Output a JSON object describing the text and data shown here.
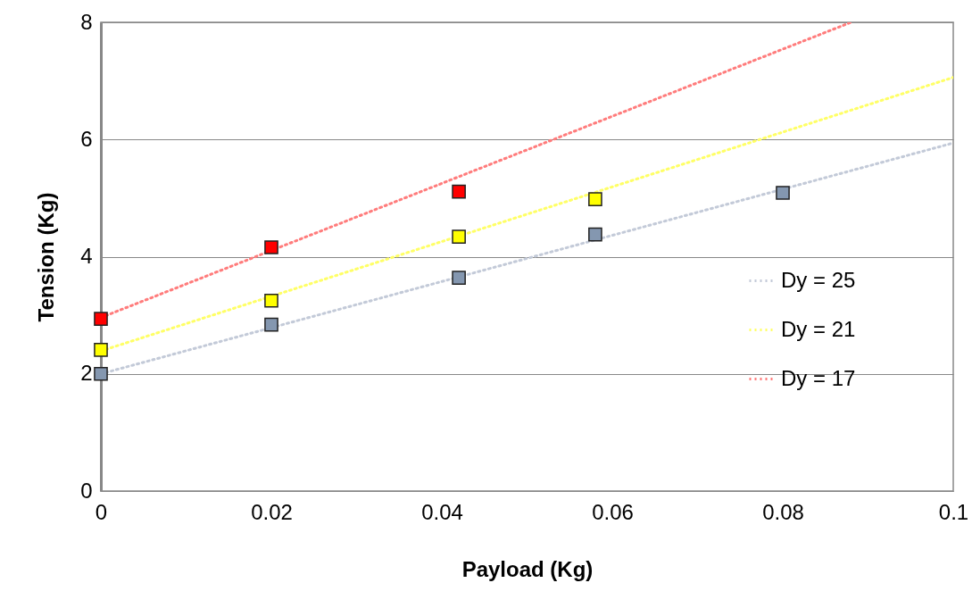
{
  "chart_data": {
    "type": "scatter",
    "xlabel": "Payload (Kg)",
    "ylabel": "Tension (Kg)",
    "xlim": [
      0,
      0.1
    ],
    "xticks": [
      0,
      0.02,
      0.04,
      0.06,
      0.08,
      0.1
    ],
    "ylim": [
      0,
      8
    ],
    "yticks": [
      0,
      2,
      4,
      6,
      8
    ],
    "grid": "y",
    "legend": "right",
    "marker": "square",
    "series": [
      {
        "color": "#8497b0",
        "x": [
          0,
          0.02,
          0.042,
          0.058,
          0.08
        ],
        "values": [
          2.0,
          2.84,
          3.64,
          4.38,
          5.09
        ]
      },
      {
        "color": "#ffff00",
        "x": [
          0,
          0.02,
          0.042,
          0.058
        ],
        "values": [
          2.41,
          3.25,
          4.34,
          4.98
        ]
      },
      {
        "color": "#ff0000",
        "x": [
          0,
          0.02,
          0.042
        ],
        "values": [
          2.94,
          4.16,
          5.11
        ]
      },
      {
        "name": "Dy = 25",
        "type": "line",
        "line_style": "dotted",
        "marker": "none",
        "color": "#c3cad8",
        "x": [
          0,
          0.1
        ],
        "values": [
          2.0,
          5.94
        ]
      },
      {
        "name": "Dy = 21",
        "type": "line",
        "line_style": "dotted",
        "marker": "none",
        "color": "#ffff66",
        "x": [
          0,
          0.1
        ],
        "values": [
          2.39,
          7.06
        ]
      },
      {
        "name": "Dy = 17",
        "type": "line",
        "line_style": "dotted",
        "marker": "none",
        "color": "#ff7c7c",
        "x": [
          0,
          0.088
        ],
        "values": [
          2.96,
          8
        ]
      }
    ]
  }
}
